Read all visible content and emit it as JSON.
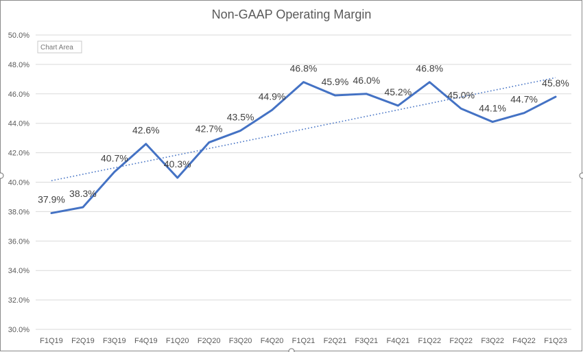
{
  "chart_data": {
    "type": "line",
    "title": "Non-GAAP Operating Margin",
    "xlabel": "",
    "ylabel": "",
    "categories": [
      "F1Q19",
      "F2Q19",
      "F3Q19",
      "F4Q19",
      "F1Q20",
      "F2Q20",
      "F3Q20",
      "F4Q20",
      "F1Q21",
      "F2Q21",
      "F3Q21",
      "F4Q21",
      "F1Q22",
      "F2Q22",
      "F3Q22",
      "F4Q22",
      "F1Q23"
    ],
    "series": [
      {
        "name": "Non-GAAP Operating Margin",
        "values": [
          37.9,
          38.3,
          40.7,
          42.6,
          40.3,
          42.7,
          43.5,
          44.9,
          46.8,
          45.9,
          46.0,
          45.2,
          46.8,
          45.0,
          44.1,
          44.7,
          45.8
        ],
        "labels": [
          "37.9%",
          "38.3%",
          "40.7%",
          "42.6%",
          "40.3%",
          "42.7%",
          "43.5%",
          "44.9%",
          "46.8%",
          "45.9%",
          "46.0%",
          "45.2%",
          "46.8%",
          "45.0%",
          "44.1%",
          "44.7%",
          "45.8%"
        ],
        "color": "#4472c4"
      }
    ],
    "trendline": {
      "type": "linear",
      "start": 40.1,
      "end": 47.1,
      "style": "dotted",
      "color": "#4472c4"
    },
    "ylim": [
      30.0,
      50.0
    ],
    "yticks": [
      30.0,
      32.0,
      34.0,
      36.0,
      38.0,
      40.0,
      42.0,
      44.0,
      46.0,
      48.0,
      50.0
    ],
    "ytick_labels": [
      "30.0%",
      "32.0%",
      "34.0%",
      "36.0%",
      "38.0%",
      "40.0%",
      "42.0%",
      "44.0%",
      "46.0%",
      "48.0%",
      "50.0%"
    ],
    "grid": true,
    "legend": "none"
  },
  "tooltip": {
    "text": "Chart Area"
  },
  "colors": {
    "grid": "#d9d9d9",
    "text": "#595959",
    "series": "#4472c4"
  }
}
